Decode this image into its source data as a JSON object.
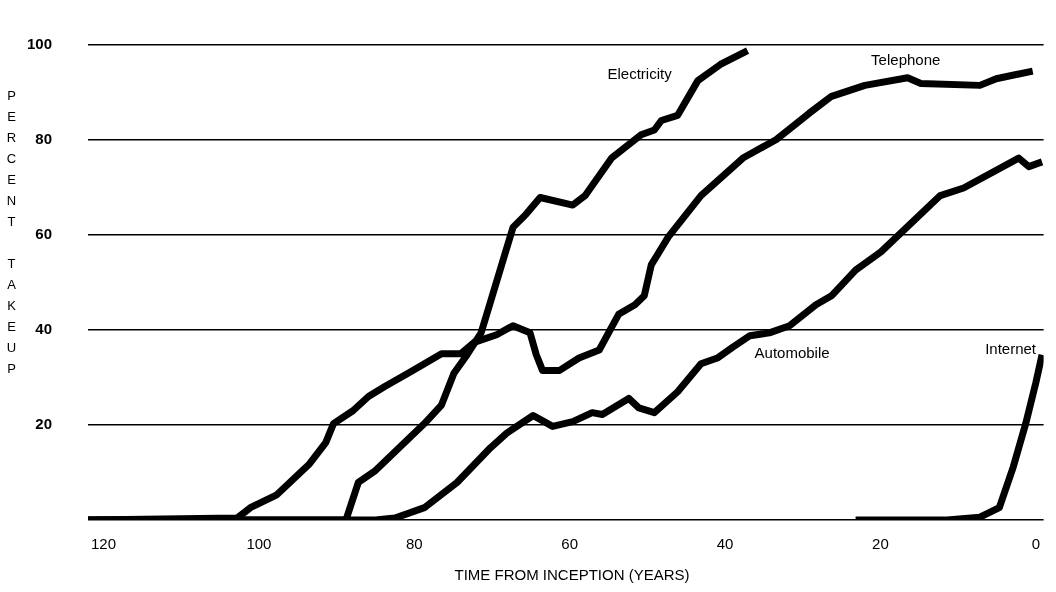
{
  "chart_data": {
    "type": "line",
    "xlabel": "TIME FROM INCEPTION (YEARS)",
    "ylabel": "PERCENT TAKEUP",
    "xlim": [
      122,
      -1
    ],
    "xticks": [
      120,
      100,
      80,
      60,
      40,
      20,
      0
    ],
    "ylim": [
      0,
      100
    ],
    "yticks": [
      {
        "value": 0,
        "label": null
      },
      20,
      40,
      60,
      80,
      100
    ],
    "grid": "y",
    "legend": false,
    "marker": "none",
    "line_style": "solid",
    "series": [
      {
        "name": "Electricity",
        "color": "#000000",
        "x": [
          122,
          88.8,
          87.2,
          85,
          78.7,
          76.5,
          74.9,
          73.2,
          71.4,
          70.2,
          67.3,
          65.6,
          63.8,
          59.6,
          58,
          54.6,
          50.8,
          49.1,
          48.2,
          46.1,
          43.5,
          40.6,
          37.1
        ],
        "values": [
          0,
          0,
          7.9,
          10.4,
          20.3,
          24.2,
          30.9,
          34.8,
          39.4,
          45.9,
          61.6,
          64.4,
          67.9,
          66.3,
          68.3,
          76.2,
          81.1,
          82.1,
          84.1,
          85.2,
          92.5,
          95.9,
          98.8
        ]
      },
      {
        "name": "Telephone",
        "color": "#000000",
        "x": [
          122,
          102.8,
          101.1,
          97.7,
          93.5,
          91.4,
          90.4,
          87.9,
          85.9,
          83.8,
          80.8,
          78.7,
          76.5,
          74,
          72.3,
          69.4,
          67.3,
          65.1,
          64.3,
          63.5,
          61.3,
          58.8,
          56.2,
          53.7,
          51.6,
          50.4,
          49.5,
          47.3,
          43.1,
          37.7,
          33.4,
          29.2,
          26.3,
          22,
          16.5,
          14.8,
          7.2,
          5.1,
          0.4
        ],
        "values": [
          0,
          0.4,
          2.6,
          5.3,
          11.8,
          16.3,
          20.3,
          23,
          26,
          28.1,
          30.9,
          32.9,
          35,
          35,
          37.4,
          39,
          40.9,
          39.4,
          34.8,
          31.5,
          31.5,
          34.1,
          35.8,
          43.3,
          45.3,
          47.2,
          53.7,
          59.6,
          68.3,
          76.2,
          80.1,
          85.6,
          89.2,
          91.5,
          93.1,
          91.9,
          91.5,
          92.9,
          94.5
        ]
      },
      {
        "name": "Automobile",
        "color": "#000000",
        "x": [
          122,
          85,
          82.5,
          78.7,
          74.5,
          70.2,
          68.1,
          64.7,
          62.2,
          59.6,
          57.1,
          55.8,
          52.4,
          51.1,
          49.1,
          46.1,
          43.1,
          41,
          39,
          36.8,
          34.3,
          31.7,
          28.3,
          26.3,
          23.2,
          19.9,
          12.3,
          9.3,
          2.2,
          0.9,
          -0.8
        ],
        "values": [
          0,
          0,
          0.4,
          2.6,
          7.9,
          15.2,
          18.3,
          22,
          19.7,
          20.7,
          22.6,
          22.2,
          25.6,
          23.6,
          22.6,
          27,
          32.9,
          34.1,
          36.4,
          38.8,
          39.4,
          40.9,
          45.3,
          47.2,
          52.6,
          56.5,
          68.3,
          69.9,
          76.2,
          74.4,
          75.4
        ]
      },
      {
        "name": "Internet",
        "color": "#000000",
        "x": [
          23.2,
          17.8,
          11.4,
          7.2,
          4.7,
          2.9,
          1.3,
          0,
          -0.8
        ],
        "values": [
          0,
          0,
          0,
          0.6,
          2.6,
          11.2,
          20.3,
          28.9,
          34.8
        ]
      }
    ]
  }
}
